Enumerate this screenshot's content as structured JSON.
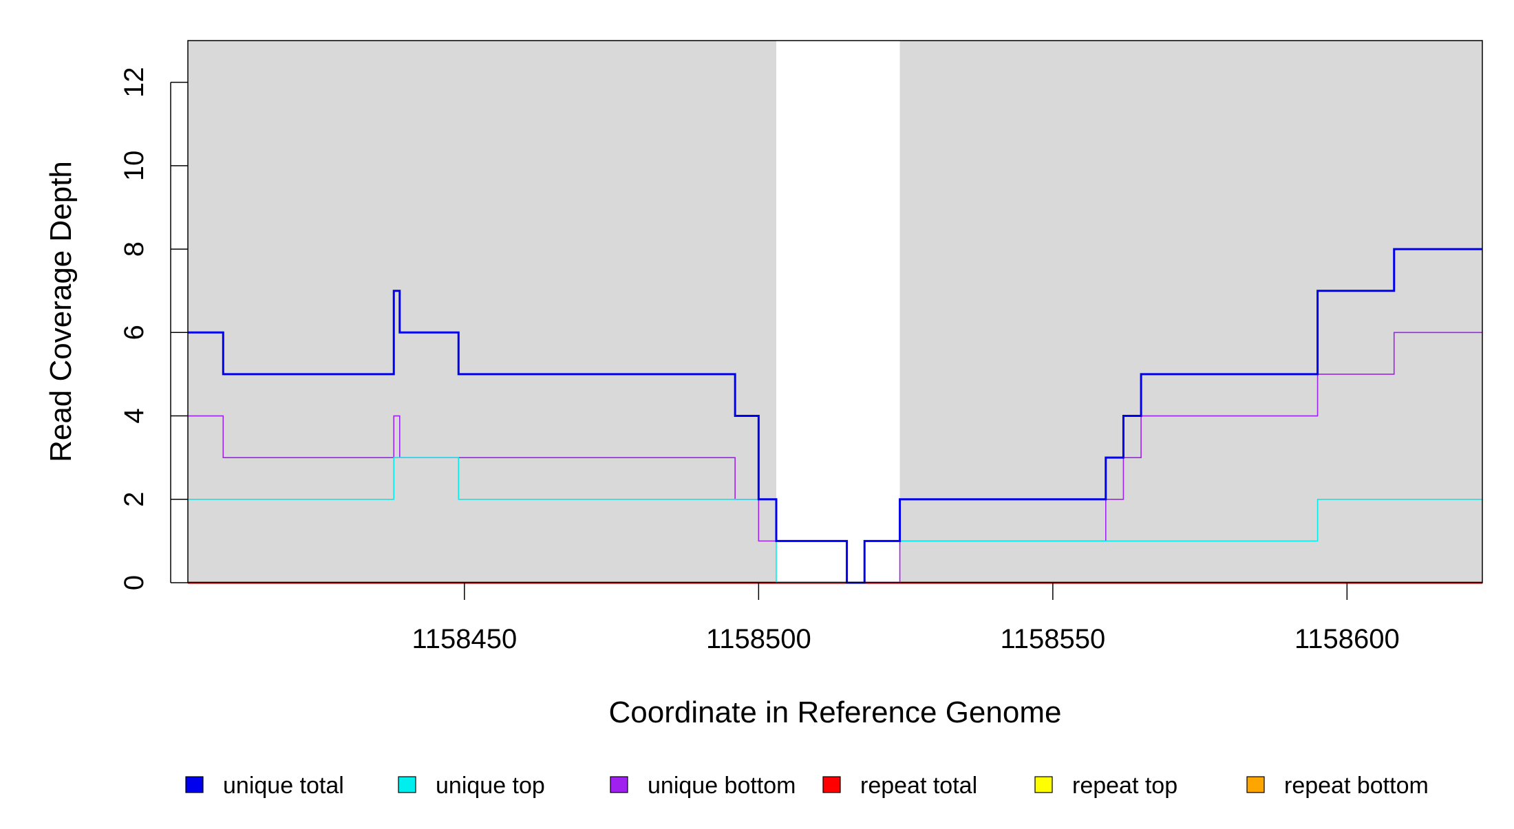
{
  "chart_data": {
    "type": "line",
    "title": "",
    "xlabel": "Coordinate in Reference Genome",
    "ylabel": "Read Coverage Depth",
    "xlim": [
      1158403,
      1158623
    ],
    "ylim": [
      0,
      13
    ],
    "x_ticks": [
      1158450,
      1158500,
      1158550,
      1158600
    ],
    "x_tick_labels": [
      "1158450",
      "1158500",
      "1158550",
      "1158600"
    ],
    "y_ticks": [
      0,
      2,
      4,
      6,
      8,
      10,
      12
    ],
    "y_tick_labels": [
      "0",
      "2",
      "4",
      "6",
      "8",
      "10",
      "12"
    ],
    "shaded_regions": [
      [
        1158403,
        1158503
      ],
      [
        1158524,
        1158623
      ]
    ],
    "grid": false,
    "legend_position": "bottom",
    "series": [
      {
        "name": "unique total",
        "color": "#0000EE",
        "step_x": [
          1158403,
          1158409,
          1158438,
          1158439,
          1158449,
          1158496,
          1158500,
          1158503,
          1158515,
          1158518,
          1158524,
          1158559,
          1158562,
          1158565,
          1158595,
          1158608,
          1158623
        ],
        "values": [
          6,
          5,
          7,
          6,
          5,
          4,
          2,
          1,
          0,
          1,
          2,
          3,
          4,
          5,
          7,
          8
        ]
      },
      {
        "name": "unique top",
        "color": "#00EEEE",
        "step_x": [
          1158403,
          1158438,
          1158449,
          1158500,
          1158503,
          1158518,
          1158524,
          1158595,
          1158623
        ],
        "values": [
          2,
          3,
          2,
          2,
          0,
          1,
          1,
          2
        ]
      },
      {
        "name": "unique bottom",
        "color": "#A020F0",
        "step_x": [
          1158403,
          1158409,
          1158438,
          1158439,
          1158496,
          1158500,
          1158515,
          1158518,
          1158524,
          1158559,
          1158562,
          1158565,
          1158595,
          1158608,
          1158623
        ],
        "values": [
          4,
          3,
          4,
          3,
          2,
          1,
          0,
          0,
          1,
          2,
          3,
          4,
          5,
          6
        ]
      },
      {
        "name": "repeat total",
        "color": "#FF0000",
        "step_x": [
          1158403,
          1158623
        ],
        "values": [
          0
        ]
      },
      {
        "name": "repeat top",
        "color": "#FFFF00",
        "step_x": [
          1158403,
          1158623
        ],
        "values": [
          0
        ]
      },
      {
        "name": "repeat bottom",
        "color": "#FFA500",
        "step_x": [
          1158403,
          1158623
        ],
        "values": [
          0
        ]
      }
    ]
  }
}
